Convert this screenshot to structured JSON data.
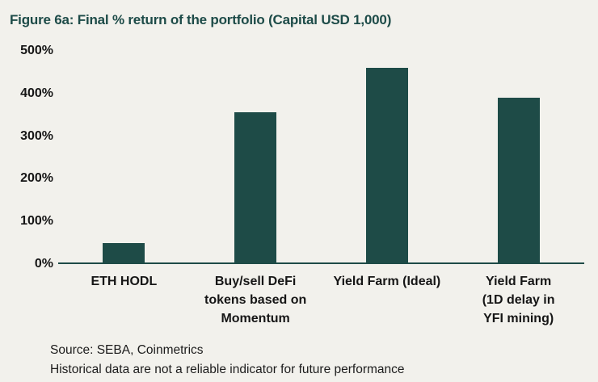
{
  "figure": {
    "title": "Figure 6a: Final % return of the portfolio (Capital USD 1,000)",
    "source": "Source: SEBA, Coinmetrics",
    "disclaimer": "Historical data are not a reliable indicator for future performance"
  },
  "colors": {
    "background": "#f2f1ec",
    "bar": "#1e4b47",
    "title_text": "#1d4b48",
    "axis_line": "#1e4b47",
    "tick_text": "#161616",
    "footer_text": "#1c1c1c"
  },
  "chart_data": {
    "type": "bar",
    "title": "Figure 6a: Final % return of the portfolio (Capital USD 1,000)",
    "categories": [
      "ETH HODL",
      "Buy/sell DeFi tokens based on Momentum",
      "Yield Farm (Ideal)",
      "Yield Farm (1D delay in YFI mining)"
    ],
    "category_lines": [
      [
        "ETH HODL"
      ],
      [
        "Buy/sell DeFi",
        "tokens based on",
        "Momentum"
      ],
      [
        "Yield Farm (Ideal)"
      ],
      [
        "Yield Farm",
        "(1D delay in",
        "YFI mining)"
      ]
    ],
    "values": [
      45,
      355,
      460,
      390
    ],
    "unit": "%",
    "xlabel": "",
    "ylabel": "",
    "ylim": [
      0,
      500
    ],
    "yticks": [
      {
        "value": 0,
        "label": "0%"
      },
      {
        "value": 100,
        "label": "100%"
      },
      {
        "value": 200,
        "label": "200%"
      },
      {
        "value": 300,
        "label": "300%"
      },
      {
        "value": 400,
        "label": "400%"
      },
      {
        "value": 500,
        "label": "500%"
      }
    ],
    "grid": false,
    "legend": "none",
    "bar_color": "#1e4b47",
    "source": "Source: SEBA, Coinmetrics",
    "disclaimer": "Historical data are not a reliable indicator for future performance"
  }
}
